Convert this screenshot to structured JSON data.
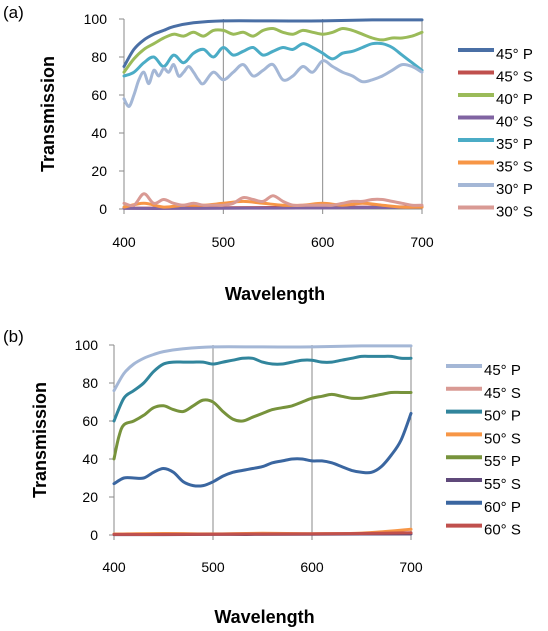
{
  "chart_data": [
    {
      "panel": "(a)",
      "type": "line",
      "xlabel": "Wavelength",
      "ylabel": "Transmission",
      "xlim": [
        400,
        700
      ],
      "ylim": [
        0,
        100
      ],
      "xticks": [
        "400",
        "500",
        "600",
        "700"
      ],
      "yticks": [
        "0",
        "20",
        "40",
        "60",
        "80",
        "100"
      ],
      "grid": "vertical",
      "legend": "right",
      "series": [
        {
          "name": "45° P",
          "color": "#4a6fa5",
          "x": [
            400,
            410,
            420,
            430,
            440,
            450,
            470,
            500,
            550,
            600,
            650,
            700
          ],
          "y": [
            75,
            84,
            89,
            92,
            94,
            96,
            98,
            99,
            99,
            99,
            99.5,
            99.5
          ]
        },
        {
          "name": "45° S",
          "color": "#c0504d",
          "x": [
            400,
            450,
            500,
            550,
            600,
            650,
            700
          ],
          "y": [
            0.5,
            0.5,
            0.7,
            0.8,
            1,
            1,
            1.2
          ]
        },
        {
          "name": "40° P",
          "color": "#9bbb59",
          "x": [
            400,
            410,
            420,
            430,
            440,
            450,
            460,
            470,
            480,
            490,
            500,
            510,
            520,
            530,
            540,
            550,
            560,
            570,
            580,
            590,
            600,
            610,
            620,
            630,
            640,
            650,
            660,
            670,
            680,
            690,
            700
          ],
          "y": [
            72,
            79,
            84,
            87,
            90,
            92,
            91,
            93,
            91,
            94,
            94,
            92,
            93,
            91,
            94,
            95,
            93,
            92,
            94,
            93,
            92,
            93,
            95,
            94,
            92,
            90,
            89,
            90,
            90,
            91,
            93
          ]
        },
        {
          "name": "40° S",
          "color": "#8064a2",
          "x": [
            400,
            450,
            500,
            550,
            600,
            650,
            700
          ],
          "y": [
            0.3,
            0.3,
            0.4,
            0.5,
            0.6,
            0.8,
            1
          ]
        },
        {
          "name": "35° P",
          "color": "#4bacc6",
          "x": [
            400,
            410,
            420,
            430,
            440,
            450,
            460,
            470,
            480,
            490,
            500,
            510,
            520,
            530,
            540,
            550,
            560,
            570,
            580,
            590,
            600,
            610,
            620,
            630,
            640,
            650,
            660,
            670,
            680,
            690,
            700
          ],
          "y": [
            70,
            72,
            77,
            80,
            75,
            81,
            77,
            82,
            84,
            80,
            85,
            81,
            83,
            85,
            81,
            83,
            85,
            84,
            87,
            85,
            82,
            79,
            82,
            83,
            85,
            87,
            87,
            85,
            81,
            77,
            73
          ]
        },
        {
          "name": "35° S",
          "color": "#f79646",
          "x": [
            400,
            420,
            440,
            460,
            480,
            500,
            520,
            540,
            560,
            580,
            600,
            620,
            640,
            660,
            680,
            700
          ],
          "y": [
            1,
            3,
            1,
            2,
            2,
            3,
            4,
            3,
            2,
            2,
            3,
            2,
            3,
            2,
            1,
            1
          ]
        },
        {
          "name": "30° P",
          "color": "#a4b7d6",
          "x": [
            400,
            405,
            410,
            415,
            420,
            425,
            430,
            435,
            440,
            445,
            450,
            455,
            460,
            465,
            470,
            475,
            480,
            490,
            500,
            510,
            520,
            530,
            540,
            550,
            560,
            570,
            580,
            590,
            600,
            610,
            620,
            630,
            640,
            650,
            660,
            670,
            680,
            690,
            700
          ],
          "y": [
            58,
            54,
            60,
            68,
            72,
            66,
            73,
            70,
            74,
            72,
            76,
            70,
            72,
            75,
            72,
            68,
            66,
            72,
            68,
            72,
            76,
            70,
            73,
            76,
            68,
            70,
            75,
            72,
            78,
            75,
            72,
            70,
            67,
            68,
            70,
            73,
            76,
            75,
            72
          ]
        },
        {
          "name": "30° S",
          "color": "#d99a94",
          "x": [
            400,
            410,
            420,
            430,
            440,
            450,
            460,
            470,
            480,
            490,
            500,
            510,
            520,
            530,
            540,
            550,
            560,
            570,
            580,
            590,
            600,
            610,
            620,
            630,
            640,
            650,
            660,
            670,
            680,
            690,
            700
          ],
          "y": [
            3,
            2,
            8,
            3,
            5,
            3,
            2,
            3,
            2,
            2,
            2,
            3,
            6,
            5,
            4,
            7,
            4,
            2,
            2,
            2,
            2,
            2,
            3,
            4,
            4,
            5,
            5,
            4,
            3,
            2,
            2
          ]
        }
      ]
    },
    {
      "panel": "(b)",
      "type": "line",
      "xlabel": "Wavelength",
      "ylabel": "Transmission",
      "xlim": [
        400,
        700
      ],
      "ylim": [
        0,
        100
      ],
      "xticks": [
        "400",
        "500",
        "600",
        "700"
      ],
      "yticks": [
        "0",
        "20",
        "40",
        "60",
        "80",
        "100"
      ],
      "grid": "vertical",
      "legend": "right",
      "series": [
        {
          "name": "45° P",
          "color": "#a4b7d6",
          "x": [
            400,
            410,
            420,
            430,
            440,
            450,
            470,
            500,
            550,
            600,
            650,
            700
          ],
          "y": [
            76,
            85,
            90,
            93,
            95,
            96.5,
            98,
            99,
            99,
            99,
            99.5,
            99.5
          ]
        },
        {
          "name": "45° S",
          "color": "#d99a94",
          "x": [
            400,
            450,
            500,
            550,
            600,
            650,
            700
          ],
          "y": [
            0.3,
            0.4,
            0.5,
            0.5,
            0.6,
            0.8,
            1
          ]
        },
        {
          "name": "50° P",
          "color": "#31859c",
          "x": [
            400,
            410,
            420,
            430,
            440,
            450,
            460,
            470,
            480,
            490,
            500,
            510,
            520,
            530,
            540,
            550,
            560,
            570,
            580,
            590,
            600,
            610,
            620,
            630,
            640,
            650,
            660,
            670,
            680,
            690,
            700
          ],
          "y": [
            60,
            72,
            76,
            80,
            86,
            90,
            91,
            91,
            91,
            91,
            90,
            91,
            92,
            93,
            93,
            91,
            90,
            90,
            91,
            92,
            92,
            91,
            91,
            92,
            93,
            94,
            94,
            94,
            94,
            93,
            93
          ]
        },
        {
          "name": "50° S",
          "color": "#f79646",
          "x": [
            400,
            450,
            500,
            550,
            600,
            650,
            700
          ],
          "y": [
            0.5,
            0.8,
            0.6,
            0.9,
            0.7,
            1,
            3
          ]
        },
        {
          "name": "55° P",
          "color": "#77933c",
          "x": [
            400,
            405,
            410,
            420,
            430,
            440,
            450,
            460,
            470,
            480,
            490,
            500,
            510,
            520,
            530,
            540,
            550,
            560,
            570,
            580,
            590,
            600,
            610,
            620,
            630,
            640,
            650,
            660,
            670,
            680,
            690,
            700
          ],
          "y": [
            40,
            52,
            58,
            60,
            63,
            67,
            68,
            66,
            65,
            68,
            71,
            70,
            65,
            61,
            60,
            62,
            64,
            66,
            67,
            68,
            70,
            72,
            73,
            74,
            73,
            72,
            72,
            73,
            74,
            75,
            75,
            75
          ]
        },
        {
          "name": "55° S",
          "color": "#5f497a",
          "x": [
            400,
            450,
            500,
            550,
            600,
            650,
            700
          ],
          "y": [
            0.2,
            0.2,
            0.3,
            0.3,
            0.4,
            0.5,
            0.6
          ]
        },
        {
          "name": "60° P",
          "color": "#3a66a0",
          "x": [
            400,
            410,
            420,
            430,
            440,
            450,
            460,
            470,
            480,
            490,
            500,
            510,
            520,
            530,
            540,
            550,
            560,
            570,
            580,
            590,
            600,
            610,
            620,
            630,
            640,
            650,
            660,
            670,
            680,
            690,
            700
          ],
          "y": [
            27,
            30,
            30,
            30,
            33,
            35,
            33,
            28,
            26,
            26,
            28,
            31,
            33,
            34,
            35,
            36,
            38,
            39,
            40,
            40,
            39,
            39,
            38,
            36,
            34,
            33,
            33,
            36,
            42,
            50,
            64
          ]
        },
        {
          "name": "60° S",
          "color": "#c0504d",
          "x": [
            400,
            450,
            500,
            550,
            600,
            650,
            700
          ],
          "y": [
            0.3,
            0.3,
            0.4,
            0.5,
            0.6,
            0.8,
            1.2
          ]
        }
      ]
    }
  ]
}
